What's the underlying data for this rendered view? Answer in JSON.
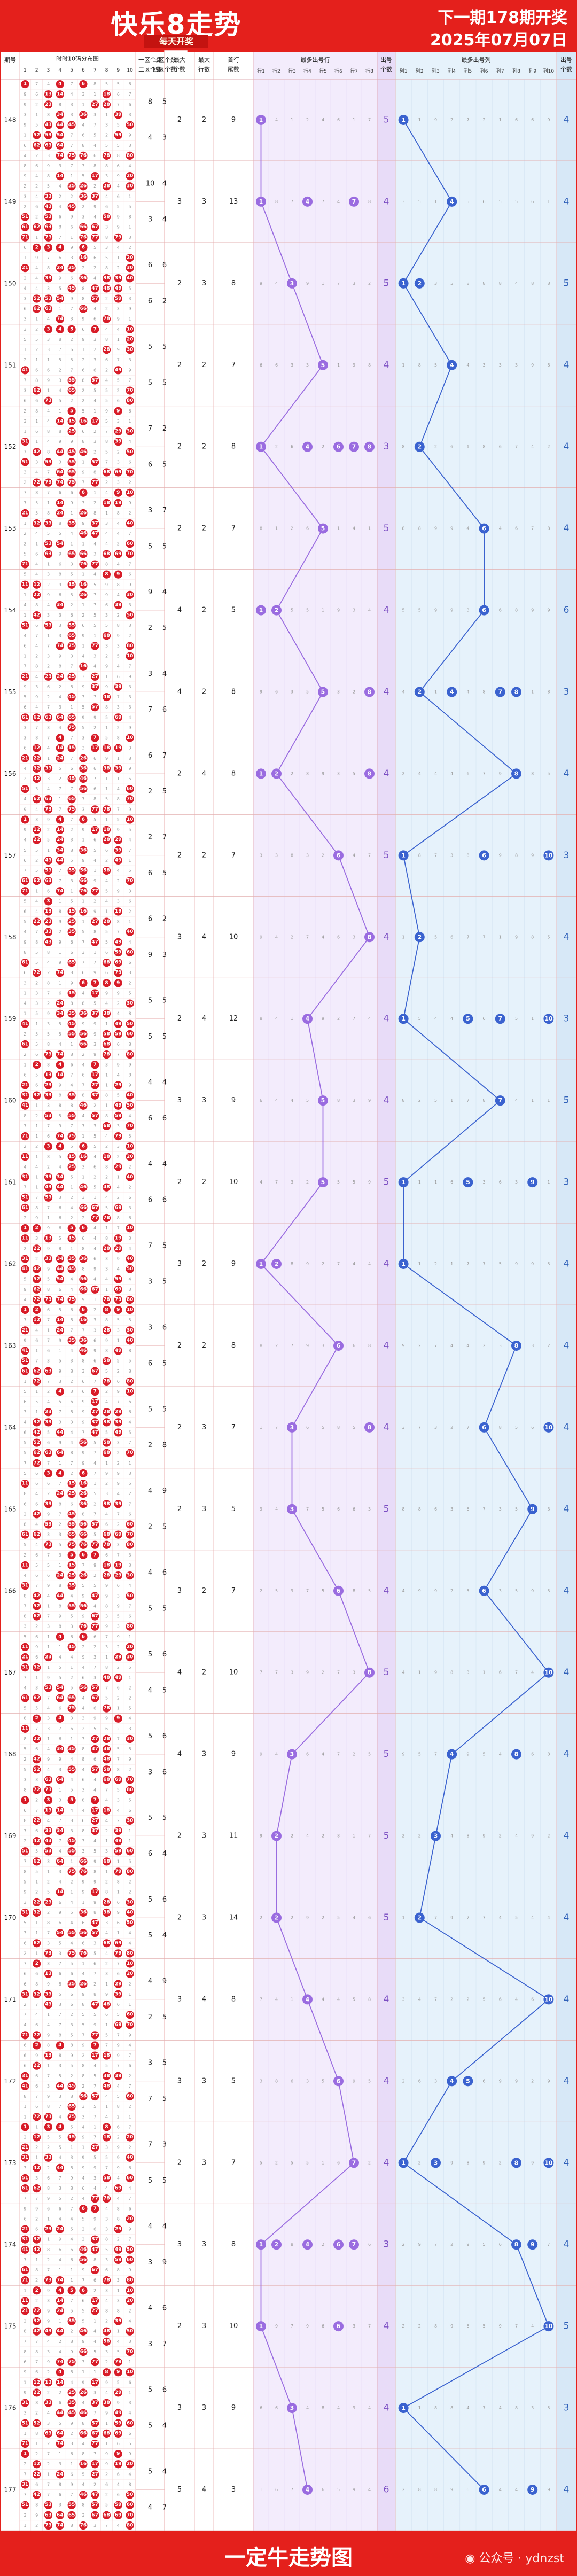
{
  "header": {
    "title": "快乐8走势图",
    "subtitle": "每天开奖",
    "next_draw": "下一期178期开奖",
    "draw_date": "2025年07月07日"
  },
  "footer": {
    "title": "一定牛走势图",
    "watermark_prefix": "公众号 ·",
    "watermark_account": "ydnzst"
  },
  "colors": {
    "red": "#e4201c",
    "ball_red": "#d81c28",
    "purple": "#9a6ce0",
    "blue": "#3a62cf",
    "purple_bg": "#f3ecfc",
    "blue_bg": "#e6f2fb"
  },
  "table_headers": {
    "period": "期号",
    "grid": "时时10码分布图",
    "grid_cols": [
      "1",
      "2",
      "3",
      "4",
      "5",
      "6",
      "7",
      "8",
      "9",
      "10"
    ],
    "g13": "一区个数 三区个数",
    "g24": "二区个数 四区个数",
    "maxcnt": "最大 个数",
    "maxrow": "最大 行数",
    "rowsum": "首行 尾数",
    "purple_title": "最多出号行",
    "purple_cols": [
      "行1",
      "行2",
      "行3",
      "行4",
      "行5",
      "行6",
      "行7",
      "行8"
    ],
    "purple_count": "出号 个数",
    "blue_title": "最多出号列",
    "blue_cols": [
      "列1",
      "列2",
      "列3",
      "列4",
      "列5",
      "列6",
      "列7",
      "列8",
      "列9",
      "列10"
    ],
    "blue_count": "出号 个数"
  },
  "chart_data": {
    "type": "table",
    "title": "快乐8走势图",
    "periods": [
      "148",
      "149",
      "150",
      "151",
      "152",
      "153",
      "154",
      "155",
      "156",
      "157",
      "158",
      "159",
      "160",
      "161",
      "162",
      "163",
      "164",
      "165",
      "166",
      "167",
      "168",
      "169",
      "170",
      "171",
      "172",
      "173",
      "174",
      "175",
      "176",
      "177"
    ],
    "red_periods": [
      "157",
      "167",
      "177"
    ],
    "zone_counts": [
      [
        8,
        5,
        4,
        3
      ],
      [
        10,
        4,
        3,
        4
      ],
      [
        6,
        6,
        6,
        2
      ],
      [
        5,
        5,
        5,
        5
      ],
      [
        7,
        2,
        6,
        5
      ],
      [
        3,
        7,
        5,
        5
      ],
      [
        9,
        4,
        2,
        5
      ],
      [
        3,
        4,
        7,
        6
      ],
      [
        6,
        7,
        2,
        5
      ],
      [
        2,
        7,
        6,
        5
      ],
      [
        6,
        2,
        9,
        3
      ],
      [
        5,
        5,
        5,
        5
      ],
      [
        4,
        4,
        6,
        6
      ],
      [
        4,
        4,
        6,
        6
      ],
      [
        7,
        5,
        3,
        5
      ],
      [
        3,
        6,
        6,
        5
      ],
      [
        5,
        5,
        2,
        8
      ],
      [
        4,
        9,
        2,
        5
      ],
      [
        4,
        6,
        5,
        5
      ],
      [
        5,
        6,
        4,
        5
      ],
      [
        5,
        6,
        3,
        6
      ],
      [
        5,
        5,
        6,
        4
      ],
      [
        5,
        6,
        5,
        4
      ],
      [
        4,
        9,
        2,
        5
      ],
      [
        3,
        5,
        7,
        5
      ],
      [
        7,
        3,
        5,
        5
      ],
      [
        4,
        4,
        3,
        9
      ],
      [
        4,
        6,
        3,
        7
      ],
      [
        5,
        6,
        5,
        4
      ],
      [
        5,
        4,
        4,
        7
      ]
    ],
    "max_count": [
      2,
      3,
      2,
      2,
      2,
      2,
      4,
      4,
      2,
      2,
      3,
      2,
      3,
      2,
      3,
      2,
      2,
      2,
      3,
      4,
      4,
      2,
      2,
      3,
      3,
      2,
      3,
      2,
      3,
      5
    ],
    "max_rows": [
      2,
      3,
      3,
      2,
      2,
      2,
      2,
      2,
      4,
      2,
      4,
      4,
      3,
      2,
      2,
      2,
      3,
      3,
      2,
      2,
      3,
      3,
      3,
      4,
      3,
      3,
      3,
      3,
      3,
      4
    ],
    "row_tail": [
      9,
      13,
      8,
      7,
      8,
      7,
      5,
      8,
      8,
      7,
      10,
      12,
      9,
      10,
      9,
      8,
      7,
      5,
      7,
      10,
      9,
      11,
      14,
      8,
      5,
      7,
      8,
      10,
      9,
      3
    ],
    "row_hits": [
      [
        1
      ],
      [
        1,
        4,
        7
      ],
      [
        3
      ],
      [
        5
      ],
      [
        1,
        4,
        6,
        7,
        8
      ],
      [
        5
      ],
      [
        1,
        2
      ],
      [
        5,
        8
      ],
      [
        1,
        2,
        8
      ],
      [
        6
      ],
      [
        8
      ],
      [
        4
      ],
      [
        5
      ],
      [
        5
      ],
      [
        1,
        2
      ],
      [
        6
      ],
      [
        3,
        8
      ],
      [
        3
      ],
      [
        6
      ],
      [
        8
      ],
      [
        3
      ],
      [
        2
      ],
      [
        2
      ],
      [
        4
      ],
      [
        6
      ],
      [
        7
      ],
      [
        1,
        2,
        4,
        6,
        7
      ],
      [
        1,
        6
      ],
      [
        3
      ],
      [
        4
      ]
    ],
    "row_path": [
      1,
      1,
      3,
      5,
      1,
      5,
      2,
      5,
      2,
      6,
      8,
      4,
      5,
      5,
      1,
      6,
      3,
      3,
      6,
      8,
      3,
      2,
      2,
      4,
      6,
      7,
      1,
      1,
      3,
      4
    ],
    "row_count": [
      5,
      4,
      5,
      4,
      3,
      5,
      4,
      4,
      4,
      5,
      4,
      4,
      4,
      5,
      4,
      4,
      4,
      5,
      4,
      5,
      5,
      5,
      5,
      4,
      4,
      4,
      3,
      4,
      4,
      6
    ],
    "col_hits": [
      [
        1
      ],
      [
        4
      ],
      [
        1,
        2
      ],
      [
        4
      ],
      [
        2
      ],
      [
        6
      ],
      [
        6
      ],
      [
        2,
        4,
        7,
        8
      ],
      [
        8
      ],
      [
        1,
        6,
        10
      ],
      [
        2
      ],
      [
        1,
        5,
        7,
        10
      ],
      [
        7
      ],
      [
        1,
        5,
        9
      ],
      [
        1
      ],
      [
        8
      ],
      [
        6,
        10
      ],
      [
        9
      ],
      [
        6
      ],
      [
        10
      ],
      [
        4,
        8
      ],
      [
        3
      ],
      [
        2
      ],
      [
        10
      ],
      [
        4,
        5
      ],
      [
        1,
        3,
        8,
        10
      ],
      [
        8,
        9
      ],
      [
        10
      ],
      [
        1
      ],
      [
        6,
        9
      ]
    ],
    "col_path": [
      1,
      4,
      1,
      4,
      2,
      6,
      6,
      2,
      8,
      1,
      2,
      1,
      7,
      1,
      1,
      8,
      6,
      9,
      6,
      10,
      4,
      3,
      2,
      10,
      4,
      1,
      8,
      10,
      1,
      6
    ],
    "col_count": [
      4,
      4,
      5,
      4,
      4,
      4,
      6,
      3,
      4,
      3,
      4,
      3,
      5,
      3,
      4,
      4,
      4,
      4,
      4,
      4,
      4,
      4,
      4,
      4,
      4,
      4,
      4,
      5,
      3,
      4
    ]
  }
}
